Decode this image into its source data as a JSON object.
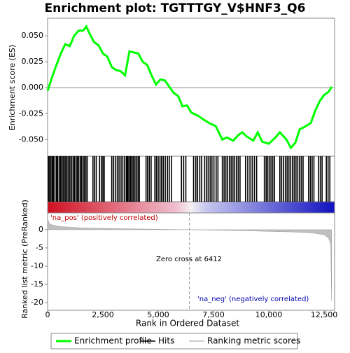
{
  "chart_data": [
    {
      "type": "line",
      "title": "Enrichment plot: TGTTTGY_V$HNF3_Q6",
      "ylabel": "Enrichment score (ES)",
      "series": [
        {
          "name": "Enrichment profile",
          "color": "#00ff00",
          "x": [
            0,
            200,
            400,
            600,
            800,
            1000,
            1200,
            1400,
            1600,
            1750,
            1900,
            2100,
            2300,
            2500,
            2700,
            2900,
            3100,
            3300,
            3500,
            3700,
            3900,
            4100,
            4300,
            4500,
            4700,
            4900,
            5100,
            5300,
            5500,
            5700,
            5900,
            6100,
            6300,
            6500,
            6800,
            7000,
            7300,
            7600,
            7900,
            8100,
            8400,
            8600,
            8800,
            9000,
            9300,
            9500,
            9700,
            10000,
            10300,
            10500,
            10800,
            11000,
            11200,
            11400,
            11600,
            11900,
            12100,
            12300,
            12500,
            12700,
            12850
          ],
          "values": [
            -0.003,
            0.01,
            0.022,
            0.033,
            0.042,
            0.04,
            0.05,
            0.055,
            0.055,
            0.059,
            0.052,
            0.044,
            0.041,
            0.033,
            0.03,
            0.02,
            0.017,
            0.016,
            0.012,
            0.035,
            0.034,
            0.033,
            0.025,
            0.022,
            0.012,
            0.003,
            0.008,
            0.007,
            0.001,
            -0.005,
            -0.008,
            -0.018,
            -0.017,
            -0.024,
            -0.027,
            -0.03,
            -0.034,
            -0.037,
            -0.05,
            -0.048,
            -0.051,
            -0.046,
            -0.043,
            -0.047,
            -0.051,
            -0.043,
            -0.052,
            -0.054,
            -0.048,
            -0.043,
            -0.05,
            -0.058,
            -0.053,
            -0.04,
            -0.038,
            -0.034,
            -0.022,
            -0.013,
            -0.007,
            -0.004,
            0.001
          ]
        }
      ],
      "xlim": [
        0,
        12975
      ],
      "ylim": [
        -0.066,
        0.067
      ],
      "yticks": [
        {
          "value": 0.05,
          "label": "0.050"
        },
        {
          "value": 0.025,
          "label": "0.025"
        },
        {
          "value": 0,
          "label": "0.000"
        },
        {
          "value": -0.025,
          "label": "-0.025"
        },
        {
          "value": -0.05,
          "label": "-0.050"
        }
      ]
    },
    {
      "type": "hits",
      "xlim": [
        0,
        12975
      ],
      "series": [
        {
          "name": "Hits",
          "color": "#000000",
          "x": [
            40,
            90,
            150,
            210,
            260,
            330,
            400,
            450,
            520,
            580,
            640,
            700,
            760,
            820,
            880,
            950,
            1010,
            1080,
            1150,
            1210,
            1280,
            1340,
            1400,
            1470,
            1530,
            1600,
            1660,
            1730,
            1790,
            2050,
            2120,
            2200,
            2350,
            2430,
            2500,
            2560,
            2900,
            2980,
            3060,
            3150,
            3230,
            3320,
            3400,
            3480,
            3560,
            3600,
            3640,
            3700,
            3760,
            3820,
            3880,
            3950,
            4020,
            4090,
            4150,
            4450,
            4520,
            4600,
            4680,
            4850,
            4920,
            5000,
            5080,
            5150,
            5230,
            5320,
            5420,
            5500,
            5600,
            6050,
            6150,
            6250,
            6600,
            6700,
            6780,
            6880,
            6960,
            7100,
            7180,
            7260,
            7350,
            7430,
            7520,
            7620,
            7700,
            7900,
            7980,
            8060,
            8140,
            8220,
            8300,
            8380,
            8460,
            8540,
            8620,
            8700,
            8950,
            9050,
            9150,
            9250,
            9350,
            9450,
            9800,
            9880,
            9950,
            10020,
            10100,
            10180,
            10260,
            10500,
            10580,
            10660,
            10750,
            10830,
            10910,
            10990,
            11070,
            11150,
            11230,
            11310,
            11390,
            11470,
            11550,
            11800,
            11880,
            11960,
            12040,
            12250,
            12330,
            12410,
            12600,
            12680,
            12760
          ]
        }
      ]
    },
    {
      "type": "area",
      "ylabel": "Ranked list metric (PreRanked)",
      "xlabel": "Rank in Ordered Dataset",
      "series": [
        {
          "name": "Ranking metric scores",
          "color": "#c0c0c0",
          "x": [
            0,
            100,
            500,
            1500,
            3000,
            6412,
            9000,
            11000,
            12000,
            12500,
            12700,
            12800,
            12840
          ],
          "values": [
            3,
            1.5,
            0.9,
            0.5,
            0.3,
            0,
            -0.3,
            -0.6,
            -0.9,
            -1.4,
            -2.3,
            -4,
            -19.5
          ]
        }
      ],
      "xlim": [
        0,
        12975
      ],
      "ylim": [
        -22.1,
        4.6
      ],
      "yticks": [
        0,
        -5,
        -10,
        -15,
        -20
      ],
      "xticks": [
        0,
        {
          "value": 2500,
          "label": "2,500"
        },
        {
          "value": 5000,
          "label": "5,000"
        },
        {
          "value": 7500,
          "label": "7,500"
        },
        {
          "value": 10000,
          "label": "10,000"
        },
        {
          "value": 12500,
          "label": "12,500"
        }
      ],
      "zero_cross": 6412,
      "annotations": [
        "'na_pos' (positively correlated)",
        "Zero cross at 6412",
        "'na_neg' (negatively correlated)"
      ]
    }
  ]
}
